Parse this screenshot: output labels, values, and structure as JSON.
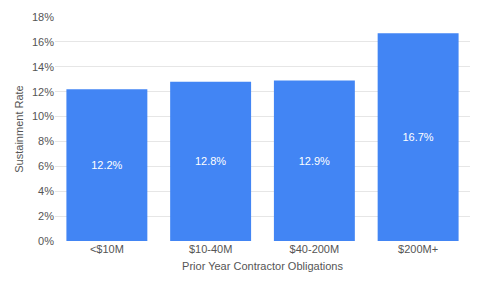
{
  "chart_data": {
    "type": "bar",
    "x_label": "Prior Year Contractor Obligations",
    "y_label": "Sustainment Rate",
    "categories": [
      "<$10M",
      "$10-40M",
      "$40-200M",
      "$200M+"
    ],
    "values": [
      12.2,
      12.8,
      12.9,
      16.7
    ],
    "value_labels": [
      "12.2%",
      "12.8%",
      "12.9%",
      "16.7%"
    ],
    "data_labels": true,
    "color": "#4285f4",
    "ylim": [
      0,
      18
    ],
    "yticks": [
      {
        "value": 0,
        "label": "0%"
      },
      {
        "value": 2,
        "label": "2%"
      },
      {
        "value": 4,
        "label": "4%"
      },
      {
        "value": 6,
        "label": "6%"
      },
      {
        "value": 8,
        "label": "8%"
      },
      {
        "value": 10,
        "label": "10%"
      },
      {
        "value": 12,
        "label": "12%"
      },
      {
        "value": 14,
        "label": "14%"
      },
      {
        "value": 16,
        "label": "16%"
      },
      {
        "value": 18,
        "label": "18%"
      }
    ],
    "grid": true
  }
}
